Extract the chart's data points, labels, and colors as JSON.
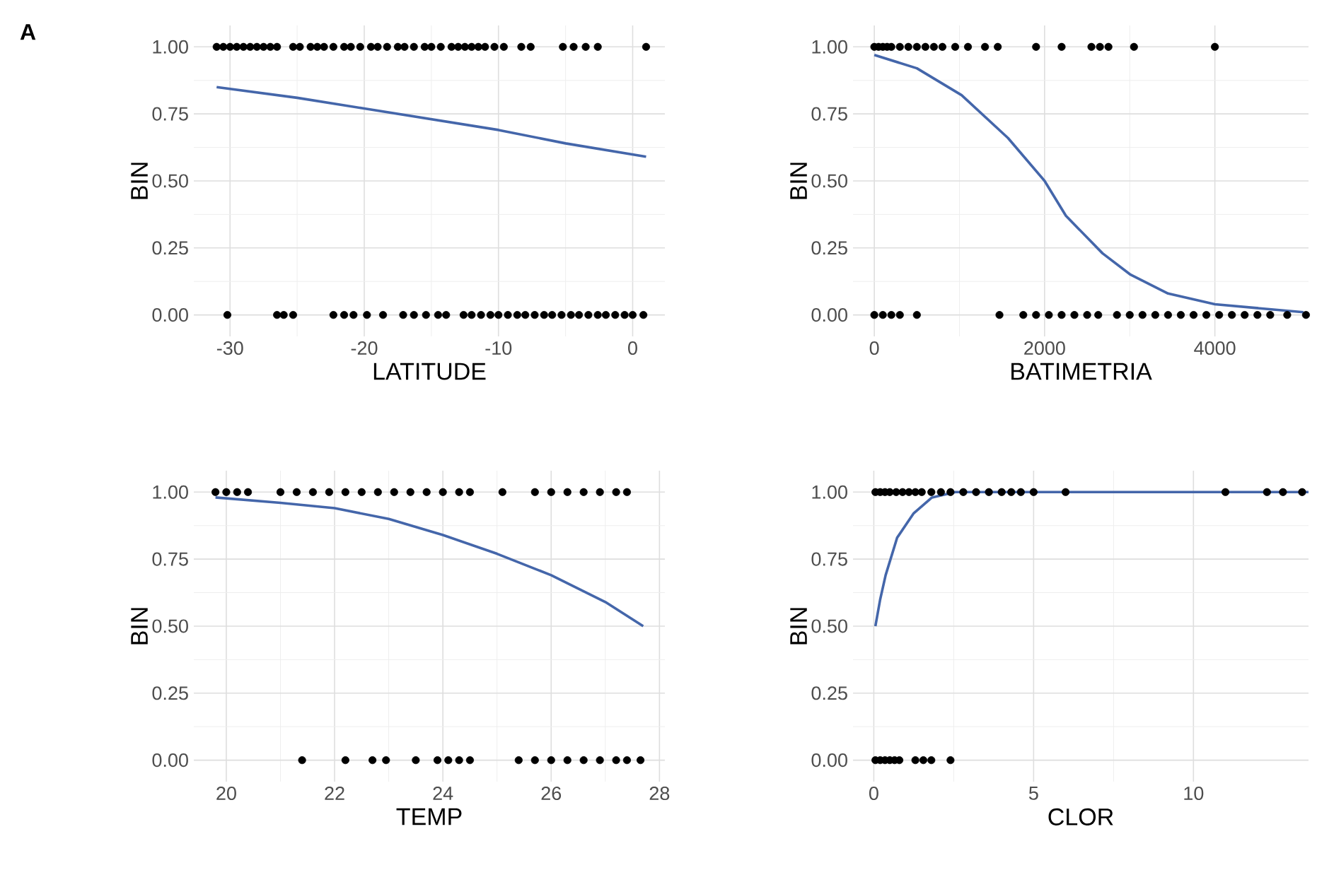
{
  "chart_data": [
    {
      "type": "scatter",
      "xlabel": "LATITUDE",
      "ylabel": "BIN",
      "annotations": [
        "A"
      ],
      "xlim": [
        -32.7,
        2.4
      ],
      "ylim": [
        -0.08,
        1.08
      ],
      "xticks": [
        -30,
        -20,
        -10,
        0
      ],
      "yticks": [
        {
          "value": 0,
          "label": "0.00"
        },
        {
          "value": 0.25,
          "label": "0.25"
        },
        {
          "value": 0.5,
          "label": "0.50"
        },
        {
          "value": 0.75,
          "label": "0.75"
        },
        {
          "value": 1,
          "label": "1.00"
        }
      ],
      "grid": true,
      "series": [
        {
          "color": "#000000",
          "x": [
            -31,
            -30.5,
            -30,
            -29.5,
            -29,
            -28.5,
            -28,
            -27.5,
            -27,
            -26.5,
            -25.3,
            -24.8,
            -24,
            -23.5,
            -23,
            -22.3,
            -21.5,
            -21,
            -20.3,
            -19.5,
            -19,
            -18.3,
            -17.5,
            -17,
            -16.3,
            -15.5,
            -15,
            -14.3,
            -13.5,
            -13,
            -12.5,
            -12,
            -11.5,
            -11,
            -10.3,
            -9.6,
            -8.3,
            -7.6,
            -5.2,
            -4.4,
            -3.5,
            -2.6,
            1.0
          ],
          "values": [
            1,
            1,
            1,
            1,
            1,
            1,
            1,
            1,
            1,
            1,
            1,
            1,
            1,
            1,
            1,
            1,
            1,
            1,
            1,
            1,
            1,
            1,
            1,
            1,
            1,
            1,
            1,
            1,
            1,
            1,
            1,
            1,
            1,
            1,
            1,
            1,
            1,
            1,
            1,
            1,
            1,
            1,
            1
          ]
        },
        {
          "color": "#000000",
          "x": [
            -30.2,
            -26.5,
            -26,
            -25.3,
            -22.3,
            -21.5,
            -20.8,
            -19.8,
            -18.6,
            -17.1,
            -16.3,
            -15.4,
            -14.5,
            -13.9,
            -12.6,
            -12,
            -11.3,
            -10.6,
            -10,
            -9.3,
            -8.6,
            -8,
            -7.3,
            -6.6,
            -6,
            -5.3,
            -4.6,
            -4,
            -3.3,
            -2.6,
            -2,
            -1.3,
            -0.6,
            0,
            0.8
          ],
          "values": [
            0,
            0,
            0,
            0,
            0,
            0,
            0,
            0,
            0,
            0,
            0,
            0,
            0,
            0,
            0,
            0,
            0,
            0,
            0,
            0,
            0,
            0,
            0,
            0,
            0,
            0,
            0,
            0,
            0,
            0,
            0,
            0,
            0,
            0,
            0
          ]
        },
        {
          "type": "line",
          "color": "#4466aa",
          "x": [
            -31,
            -25,
            -20,
            -15,
            -10,
            -5,
            1
          ],
          "values": [
            0.85,
            0.81,
            0.77,
            0.73,
            0.69,
            0.64,
            0.59
          ]
        }
      ]
    },
    {
      "type": "scatter",
      "xlabel": "BATIMETRIA",
      "ylabel": "BIN",
      "xlim": [
        -250,
        5100
      ],
      "ylim": [
        -0.08,
        1.08
      ],
      "xticks": [
        0,
        2000,
        4000
      ],
      "yticks": [
        {
          "value": 0,
          "label": "0.00"
        },
        {
          "value": 0.25,
          "label": "0.25"
        },
        {
          "value": 0.5,
          "label": "0.50"
        },
        {
          "value": 0.75,
          "label": "0.75"
        },
        {
          "value": 1,
          "label": "1.00"
        }
      ],
      "grid": true,
      "series": [
        {
          "color": "#000000",
          "x": [
            0,
            50,
            100,
            150,
            200,
            300,
            400,
            500,
            600,
            700,
            800,
            950,
            1100,
            1300,
            1450,
            1900,
            2200,
            2550,
            2650,
            2750,
            3050,
            4000
          ],
          "values": [
            1,
            1,
            1,
            1,
            1,
            1,
            1,
            1,
            1,
            1,
            1,
            1,
            1,
            1,
            1,
            1,
            1,
            1,
            1,
            1,
            1,
            1
          ]
        },
        {
          "color": "#000000",
          "x": [
            0,
            100,
            200,
            300,
            500,
            1470,
            1750,
            1900,
            2050,
            2200,
            2350,
            2500,
            2630,
            2850,
            3000,
            3150,
            3300,
            3450,
            3600,
            3750,
            3900,
            4050,
            4200,
            4350,
            4500,
            4650,
            4850,
            5070
          ],
          "values": [
            0,
            0,
            0,
            0,
            0,
            0,
            0,
            0,
            0,
            0,
            0,
            0,
            0,
            0,
            0,
            0,
            0,
            0,
            0,
            0,
            0,
            0,
            0,
            0,
            0,
            0,
            0,
            0
          ]
        },
        {
          "type": "line",
          "color": "#4466aa",
          "x": [
            0,
            500,
            1025,
            1570,
            2000,
            2250,
            2680,
            3010,
            3450,
            4000,
            5040
          ],
          "values": [
            0.97,
            0.92,
            0.82,
            0.66,
            0.5,
            0.37,
            0.23,
            0.15,
            0.08,
            0.04,
            0.01
          ]
        }
      ]
    },
    {
      "type": "scatter",
      "xlabel": "TEMP",
      "ylabel": "BIN",
      "xlim": [
        19.4,
        28.1
      ],
      "ylim": [
        -0.08,
        1.08
      ],
      "xticks": [
        20,
        22,
        24,
        26,
        28
      ],
      "yticks": [
        {
          "value": 0,
          "label": "0.00"
        },
        {
          "value": 0.25,
          "label": "0.25"
        },
        {
          "value": 0.5,
          "label": "0.50"
        },
        {
          "value": 0.75,
          "label": "0.75"
        },
        {
          "value": 1,
          "label": "1.00"
        }
      ],
      "grid": true,
      "series": [
        {
          "color": "#000000",
          "x": [
            19.8,
            20.0,
            20.2,
            20.4,
            21.0,
            21.3,
            21.6,
            21.9,
            22.2,
            22.5,
            22.8,
            23.1,
            23.4,
            23.7,
            24.0,
            24.3,
            24.5,
            25.1,
            25.7,
            26.0,
            26.3,
            26.6,
            26.9,
            27.2,
            27.4
          ],
          "values": [
            1,
            1,
            1,
            1,
            1,
            1,
            1,
            1,
            1,
            1,
            1,
            1,
            1,
            1,
            1,
            1,
            1,
            1,
            1,
            1,
            1,
            1,
            1,
            1,
            1
          ]
        },
        {
          "color": "#000000",
          "x": [
            21.4,
            22.2,
            22.7,
            22.95,
            23.5,
            23.9,
            24.1,
            24.3,
            24.5,
            25.4,
            25.7,
            26.0,
            26.3,
            26.6,
            26.9,
            27.2,
            27.4,
            27.65
          ],
          "values": [
            0,
            0,
            0,
            0,
            0,
            0,
            0,
            0,
            0,
            0,
            0,
            0,
            0,
            0,
            0,
            0,
            0,
            0
          ]
        },
        {
          "type": "line",
          "color": "#4466aa",
          "x": [
            19.8,
            21,
            22,
            23,
            24,
            25,
            26,
            27,
            27.7
          ],
          "values": [
            0.98,
            0.96,
            0.94,
            0.9,
            0.84,
            0.77,
            0.69,
            0.59,
            0.5
          ]
        }
      ]
    },
    {
      "type": "scatter",
      "xlabel": "CLOR",
      "ylabel": "BIN",
      "xlim": [
        -0.65,
        13.6
      ],
      "ylim": [
        -0.08,
        1.08
      ],
      "xticks": [
        0,
        5,
        10
      ],
      "yticks": [
        {
          "value": 0,
          "label": "0.00"
        },
        {
          "value": 0.25,
          "label": "0.25"
        },
        {
          "value": 0.5,
          "label": "0.50"
        },
        {
          "value": 0.75,
          "label": "0.75"
        },
        {
          "value": 1,
          "label": "1.00"
        }
      ],
      "grid": true,
      "series": [
        {
          "color": "#000000",
          "x": [
            0.05,
            0.2,
            0.35,
            0.5,
            0.7,
            0.9,
            1.1,
            1.3,
            1.5,
            1.8,
            2.1,
            2.4,
            2.8,
            3.2,
            3.6,
            4.0,
            4.3,
            4.6,
            5.0,
            6.0,
            11.0,
            12.3,
            12.8,
            13.4
          ],
          "values": [
            1,
            1,
            1,
            1,
            1,
            1,
            1,
            1,
            1,
            1,
            1,
            1,
            1,
            1,
            1,
            1,
            1,
            1,
            1,
            1,
            1,
            1,
            1,
            1
          ]
        },
        {
          "color": "#000000",
          "x": [
            0.05,
            0.2,
            0.35,
            0.5,
            0.65,
            0.8,
            1.3,
            1.55,
            1.8,
            2.4
          ],
          "values": [
            0,
            0,
            0,
            0,
            0,
            0,
            0,
            0,
            0,
            0
          ]
        },
        {
          "type": "line",
          "color": "#4466aa",
          "x": [
            0.05,
            0.2,
            0.37,
            0.73,
            1.24,
            1.82,
            2.55,
            13.6
          ],
          "values": [
            0.5,
            0.6,
            0.69,
            0.83,
            0.92,
            0.98,
            1.0,
            1.0
          ]
        }
      ]
    }
  ]
}
